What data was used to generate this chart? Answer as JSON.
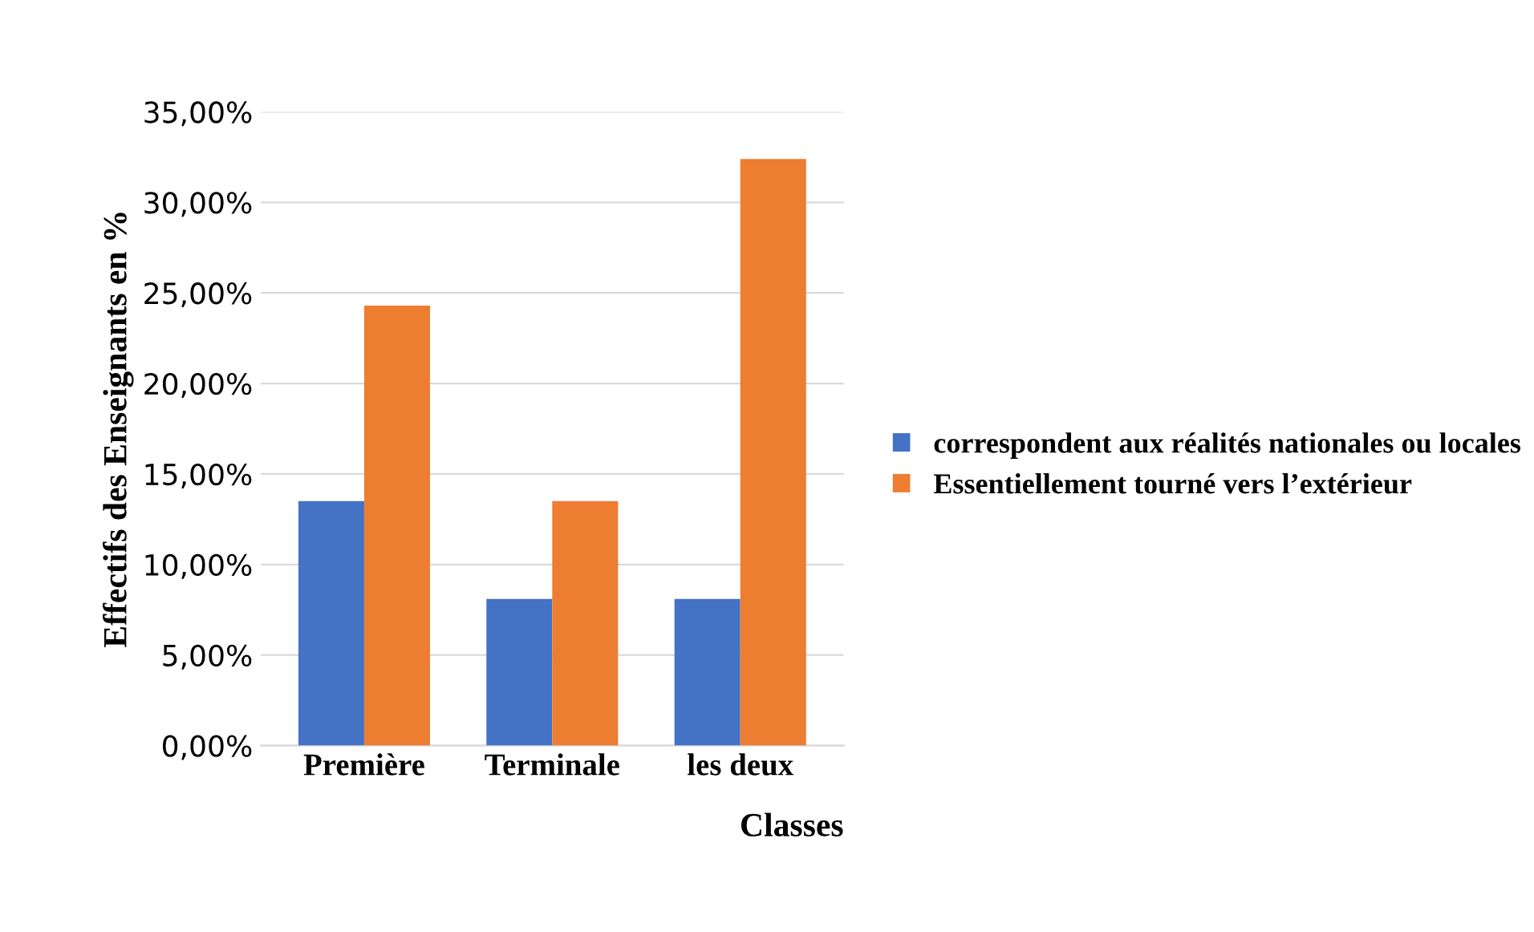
{
  "chart_data": {
    "type": "bar",
    "xlabel": "Classes",
    "ylabel": "Effectifs des Enseignants en %",
    "categories": [
      "Première",
      "Terminale",
      "les deux"
    ],
    "series": [
      {
        "name": "correspondent aux réalités nationales ou locales",
        "color": "#4472c4",
        "values": [
          13.5,
          8.1,
          8.1
        ]
      },
      {
        "name": "Essentiellement tourné vers l’extérieur",
        "color": "#ed7d31",
        "values": [
          24.3,
          13.5,
          32.4
        ]
      }
    ],
    "ylim": [
      0,
      35
    ],
    "yticks": [
      {
        "value": 0,
        "label": "0,00%"
      },
      {
        "value": 5,
        "label": "5,00%"
      },
      {
        "value": 10,
        "label": "10,00%"
      },
      {
        "value": 15,
        "label": "15,00%"
      },
      {
        "value": 20,
        "label": "20,00%"
      },
      {
        "value": 25,
        "label": "25,00%"
      },
      {
        "value": 30,
        "label": "30,00%"
      },
      {
        "value": 35,
        "label": "35,00%"
      }
    ],
    "grid": "y",
    "legend": "right"
  }
}
